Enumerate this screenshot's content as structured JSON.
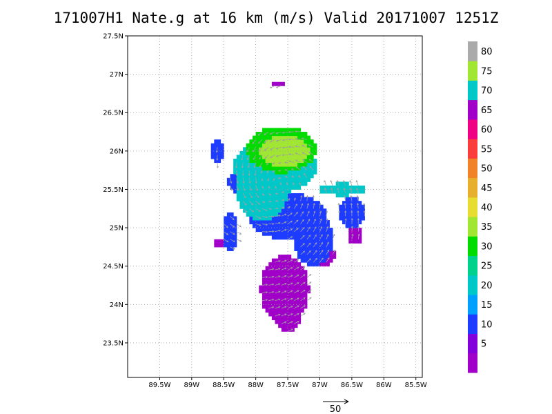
{
  "title": "171007H1 Nate.g at 16 km (m/s) Valid 20171007 1251Z",
  "map": {
    "lon_range": [
      -90.0,
      -85.4
    ],
    "lat_range": [
      23.05,
      27.5
    ],
    "x_ticks": [
      {
        "value": -89.5,
        "label": "89.5W"
      },
      {
        "value": -89.0,
        "label": "89W"
      },
      {
        "value": -88.5,
        "label": "88.5W"
      },
      {
        "value": -88.0,
        "label": "88W"
      },
      {
        "value": -87.5,
        "label": "87.5W"
      },
      {
        "value": -87.0,
        "label": "87W"
      },
      {
        "value": -86.5,
        "label": "86.5W"
      },
      {
        "value": -86.0,
        "label": "86W"
      },
      {
        "value": -85.5,
        "label": "85.5W"
      }
    ],
    "y_ticks": [
      {
        "value": 23.5,
        "label": "23.5N"
      },
      {
        "value": 24.0,
        "label": "24N"
      },
      {
        "value": 24.5,
        "label": "24.5N"
      },
      {
        "value": 25.0,
        "label": "25N"
      },
      {
        "value": 25.5,
        "label": "25.5N"
      },
      {
        "value": 26.0,
        "label": "26N"
      },
      {
        "value": 26.5,
        "label": "26.5N"
      },
      {
        "value": 27.0,
        "label": "27N"
      },
      {
        "value": 27.5,
        "label": "27.5N"
      }
    ],
    "grid": true,
    "center": {
      "lon": -87.62,
      "lat": 25.55
    },
    "wind_regions": [
      {
        "lon": -87.55,
        "lat": 26.0,
        "rx": 0.4,
        "ry": 0.2,
        "level": 4
      },
      {
        "lon": -87.6,
        "lat": 26.02,
        "rx": 0.55,
        "ry": 0.3,
        "level": 3
      },
      {
        "lon": -87.7,
        "lat": 25.8,
        "rx": 0.65,
        "ry": 0.35,
        "level": 2
      },
      {
        "lon": -87.9,
        "lat": 25.5,
        "rx": 0.4,
        "ry": 0.4,
        "level": 2
      },
      {
        "lon": -86.65,
        "lat": 25.5,
        "rx": 0.35,
        "ry": 0.08,
        "level": 2
      },
      {
        "lon": -88.2,
        "lat": 25.6,
        "rx": 0.25,
        "ry": 0.15,
        "level": 1
      },
      {
        "lon": -88.6,
        "lat": 26.0,
        "rx": 0.1,
        "ry": 0.15,
        "level": 1
      },
      {
        "lon": -87.5,
        "lat": 25.15,
        "rx": 0.6,
        "ry": 0.3,
        "level": 1
      },
      {
        "lon": -87.1,
        "lat": 24.85,
        "rx": 0.3,
        "ry": 0.35,
        "level": 1
      },
      {
        "lon": -86.5,
        "lat": 25.2,
        "rx": 0.22,
        "ry": 0.2,
        "level": 1
      },
      {
        "lon": -88.4,
        "lat": 24.95,
        "rx": 0.12,
        "ry": 0.25,
        "level": 1
      },
      {
        "lon": -87.55,
        "lat": 24.2,
        "rx": 0.38,
        "ry": 0.45,
        "level": 0
      },
      {
        "lon": -87.5,
        "lat": 23.85,
        "rx": 0.2,
        "ry": 0.2,
        "level": 0
      },
      {
        "lon": -86.95,
        "lat": 24.65,
        "rx": 0.2,
        "ry": 0.15,
        "level": 0
      },
      {
        "lon": -86.45,
        "lat": 24.9,
        "rx": 0.1,
        "ry": 0.12,
        "level": 0
      },
      {
        "lon": -87.65,
        "lat": 26.87,
        "rx": 0.08,
        "ry": 0.04,
        "level": 0
      },
      {
        "lon": -88.55,
        "lat": 24.8,
        "rx": 0.1,
        "ry": 0.05,
        "level": 0
      },
      {
        "lon": -87.7,
        "lat": 24.95,
        "rx": 0.08,
        "ry": 0.08,
        "level": 0
      }
    ]
  },
  "colorbar": {
    "colors": [
      "#a000c8",
      "#8200dc",
      "#1e3cff",
      "#00a0ff",
      "#00c8c8",
      "#00d28c",
      "#00dc00",
      "#a0e632",
      "#e6dc32",
      "#e6af2d",
      "#f08228",
      "#fa3c3c",
      "#f00082",
      "#a000c8",
      "#00c8c8",
      "#a0e632",
      "#aaaaaa"
    ],
    "labels": [
      "5",
      "10",
      "15",
      "20",
      "25",
      "30",
      "35",
      "40",
      "45",
      "50",
      "55",
      "60",
      "65",
      "70",
      "75",
      "80"
    ]
  },
  "reference_vector": {
    "label": "50"
  }
}
